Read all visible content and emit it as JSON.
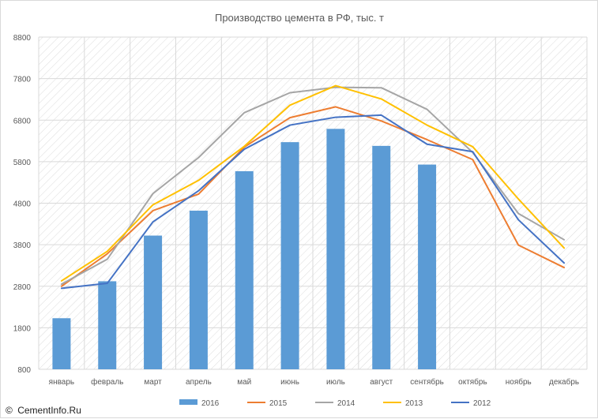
{
  "chart_data": {
    "type": "bar",
    "title": "Производство цемента в РФ, тыс. т",
    "categories": [
      "январь",
      "февраль",
      "март",
      "апрель",
      "май",
      "июнь",
      "июль",
      "август",
      "сентябрь",
      "октябрь",
      "ноябрь",
      "декабрь"
    ],
    "ylim": [
      800,
      8800
    ],
    "yticks": [
      800,
      1800,
      2800,
      3800,
      4800,
      5800,
      6800,
      7800,
      8800
    ],
    "grid": true,
    "grid_style": "diagonal hatch",
    "legend_position": "bottom",
    "bar_series": {
      "name": "2016",
      "color": "#5b9bd5",
      "values": [
        2030,
        2920,
        4020,
        4620,
        5570,
        6270,
        6590,
        6180,
        5730,
        null,
        null,
        null
      ]
    },
    "line_series": [
      {
        "name": "2015",
        "color": "#ed7d31",
        "values": [
          2800,
          3580,
          4620,
          5020,
          6150,
          6860,
          7120,
          6780,
          6330,
          5850,
          3790,
          3250
        ]
      },
      {
        "name": "2014",
        "color": "#a5a5a5",
        "values": [
          2850,
          3450,
          5030,
          5900,
          6980,
          7460,
          7590,
          7580,
          7060,
          6020,
          4550,
          3920
        ]
      },
      {
        "name": "2013",
        "color": "#ffc000",
        "values": [
          2930,
          3640,
          4760,
          5350,
          6170,
          7160,
          7630,
          7310,
          6680,
          6160,
          4900,
          3720
        ]
      },
      {
        "name": "2012",
        "color": "#4472c4",
        "values": [
          2750,
          2870,
          4350,
          5100,
          6100,
          6680,
          6870,
          6920,
          6220,
          6040,
          4400,
          3360
        ]
      }
    ]
  },
  "watermark": {
    "copyright_symbol": "©",
    "text": "CementInfo.Ru"
  }
}
